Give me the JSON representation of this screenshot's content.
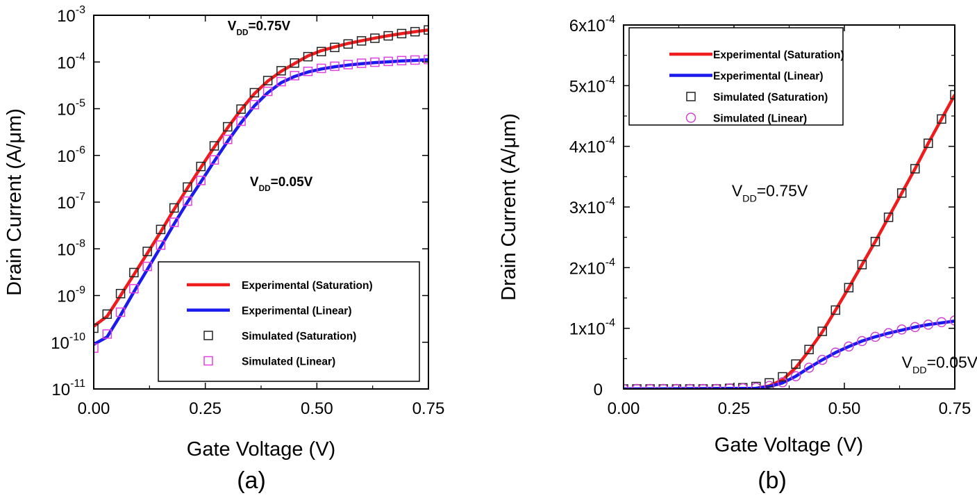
{
  "chart_data": [
    {
      "panel": "a",
      "type": "line",
      "yscale": "log",
      "xlabel": "Gate Voltage (V)",
      "ylabel": "Drain Current (A/μm)",
      "caption": "(a)",
      "xlim": [
        0,
        0.75
      ],
      "ylim": [
        1e-11,
        0.001
      ],
      "xticks": [
        0,
        0.25,
        0.5,
        0.75
      ],
      "xtick_labels": [
        "0.00",
        "0.25",
        "0.50",
        "0.75"
      ],
      "yticks": [
        1e-11,
        1e-10,
        1e-09,
        1e-08,
        1e-07,
        1e-06,
        1e-05,
        0.0001,
        0.001
      ],
      "ytick_base": "10",
      "ytick_exponents": [
        "-11",
        "-10",
        "-9",
        "-8",
        "-7",
        "-6",
        "-5",
        "-4",
        "-3"
      ],
      "legend_position": "bottom-right",
      "legend": [
        {
          "label": "Experimental (Saturation)",
          "kind": "line",
          "color": "#ee1c1c"
        },
        {
          "label": "Experimental (Linear)",
          "kind": "line",
          "color": "#1a1aee"
        },
        {
          "label": "Simulated (Saturation)",
          "kind": "square",
          "color": "#222222"
        },
        {
          "label": "Simulated (Linear)",
          "kind": "square",
          "color": "#e040e0"
        }
      ],
      "annotations": [
        {
          "text": "V",
          "sub": "DD",
          "rest": "=0.75V",
          "at_x": 0.3,
          "at_y": 0.00048
        },
        {
          "text": "V",
          "sub": "DD",
          "rest": "=0.05V",
          "at_x": 0.35,
          "at_y": 2.2e-07
        }
      ],
      "series": [
        {
          "name": "Experimental (Saturation)",
          "style": "line",
          "color": "#ee1c1c",
          "x": [
            0.0,
            0.03,
            0.06,
            0.09,
            0.12,
            0.15,
            0.18,
            0.21,
            0.24,
            0.27,
            0.3,
            0.33,
            0.36,
            0.39,
            0.42,
            0.45,
            0.48,
            0.51,
            0.54,
            0.57,
            0.6,
            0.63,
            0.66,
            0.69,
            0.72,
            0.75
          ],
          "y": [
            2.2e-10,
            3.6e-10,
            1e-09,
            2.8e-09,
            8e-09,
            2.3e-08,
            7e-08,
            2e-07,
            5.5e-07,
            1.5e-06,
            3.9e-06,
            9.5e-06,
            2.1e-05,
            3.9e-05,
            6.3e-05,
            9.3e-05,
            0.000135,
            0.000175,
            0.00021,
            0.00025,
            0.000285,
            0.000325,
            0.000365,
            0.000405,
            0.000445,
            0.000485
          ]
        },
        {
          "name": "Experimental (Linear)",
          "style": "line",
          "color": "#1a1aee",
          "x": [
            0.0,
            0.03,
            0.06,
            0.09,
            0.12,
            0.15,
            0.18,
            0.21,
            0.24,
            0.27,
            0.3,
            0.33,
            0.36,
            0.39,
            0.42,
            0.45,
            0.48,
            0.51,
            0.54,
            0.57,
            0.6,
            0.63,
            0.66,
            0.69,
            0.72,
            0.75
          ],
          "y": [
            9e-11,
            1.3e-10,
            3.8e-10,
            1.2e-09,
            3.6e-09,
            1.1e-08,
            3.4e-08,
            1e-07,
            2.7e-07,
            7.5e-07,
            2e-06,
            5e-06,
            1.15e-05,
            2.2e-05,
            3.6e-05,
            4.9e-05,
            6.1e-05,
            7.1e-05,
            7.9e-05,
            8.6e-05,
            9.2e-05,
            9.7e-05,
            0.000101,
            0.000105,
            0.000108,
            0.000112
          ]
        },
        {
          "name": "Simulated (Saturation)",
          "style": "square",
          "color": "#222222",
          "x": [
            0.0,
            0.03,
            0.06,
            0.09,
            0.12,
            0.15,
            0.18,
            0.21,
            0.24,
            0.27,
            0.3,
            0.33,
            0.36,
            0.39,
            0.42,
            0.45,
            0.48,
            0.51,
            0.54,
            0.57,
            0.6,
            0.63,
            0.66,
            0.69,
            0.72,
            0.75
          ],
          "y": [
            2e-10,
            4e-10,
            1.1e-09,
            3.1e-09,
            8.8e-09,
            2.6e-08,
            7.5e-08,
            2.1e-07,
            5.8e-07,
            1.6e-06,
            4.1e-06,
            9.8e-06,
            2.2e-05,
            4e-05,
            6.5e-05,
            9.5e-05,
            0.00013,
            0.000167,
            0.000205,
            0.000243,
            0.000283,
            0.000323,
            0.000363,
            0.000405,
            0.000445,
            0.000485
          ]
        },
        {
          "name": "Simulated (Linear)",
          "style": "square",
          "color": "#e040e0",
          "x": [
            0.0,
            0.03,
            0.06,
            0.09,
            0.12,
            0.15,
            0.18,
            0.21,
            0.24,
            0.27,
            0.3,
            0.33,
            0.36,
            0.39,
            0.42,
            0.45,
            0.48,
            0.51,
            0.54,
            0.57,
            0.6,
            0.63,
            0.66,
            0.69,
            0.72,
            0.75
          ],
          "y": [
            7.5e-11,
            1.5e-10,
            4.4e-10,
            1.4e-09,
            4.2e-09,
            1.2e-08,
            3.7e-08,
            1.05e-07,
            2.9e-07,
            8e-07,
            2.2e-06,
            5.4e-06,
            1.22e-05,
            2.35e-05,
            3.8e-05,
            5.1e-05,
            6.3e-05,
            7.3e-05,
            8.1e-05,
            8.8e-05,
            9.4e-05,
            9.9e-05,
            0.000103,
            0.000107,
            0.00011,
            0.000113
          ]
        }
      ]
    },
    {
      "panel": "b",
      "type": "line",
      "yscale": "linear",
      "xlabel": "Gate Voltage (V)",
      "ylabel": "Drain Current (A/μm)",
      "caption": "(b)",
      "xlim": [
        0,
        0.75
      ],
      "ylim": [
        0,
        0.0006
      ],
      "xticks": [
        0,
        0.25,
        0.5,
        0.75
      ],
      "xtick_labels": [
        "0.00",
        "0.25",
        "0.50",
        "0.75"
      ],
      "yticks": [
        0,
        0.0001,
        0.0002,
        0.0003,
        0.0004,
        0.0005,
        0.0006
      ],
      "ytick_mantissas": [
        "0",
        "1x10",
        "2x10",
        "3x10",
        "4x10",
        "5x10",
        "6x10"
      ],
      "ytick_exponents": [
        "",
        "-4",
        "-4",
        "-4",
        "-4",
        "-4",
        "-4"
      ],
      "legend_position": "top-left",
      "legend": [
        {
          "label": "Experimental (Saturation)",
          "kind": "line",
          "color": "#ee1c1c"
        },
        {
          "label": "Experimental (Linear)",
          "kind": "line",
          "color": "#1a1aee"
        },
        {
          "label": "Simulated (Saturation)",
          "kind": "square",
          "color": "#222222"
        },
        {
          "label": "Simulated (Linear)",
          "kind": "circle",
          "color": "#d040d0"
        }
      ],
      "annotations": [
        {
          "text": "V",
          "sub": "DD",
          "rest": "=0.75V",
          "at_x": 0.245,
          "at_y": 0.000318
        },
        {
          "text": "V",
          "sub": "DD",
          "rest": "=0.05V",
          "at_x": 0.63,
          "at_y": 3.5e-05
        }
      ],
      "series": [
        {
          "name": "Experimental (Saturation)",
          "style": "line",
          "color": "#ee1c1c",
          "x": [
            0.0,
            0.3,
            0.33,
            0.36,
            0.39,
            0.42,
            0.45,
            0.48,
            0.51,
            0.54,
            0.57,
            0.6,
            0.63,
            0.66,
            0.69,
            0.72,
            0.75
          ],
          "y": [
            0.0,
            1e-06,
            5e-06,
            1.5e-05,
            3.5e-05,
            6.3e-05,
            9.4e-05,
            0.00013,
            0.000167,
            0.000205,
            0.000243,
            0.000283,
            0.000323,
            0.000363,
            0.000405,
            0.000445,
            0.000485
          ]
        },
        {
          "name": "Experimental (Linear)",
          "style": "line",
          "color": "#1a1aee",
          "x": [
            0.0,
            0.3,
            0.33,
            0.36,
            0.39,
            0.42,
            0.45,
            0.48,
            0.51,
            0.54,
            0.57,
            0.6,
            0.63,
            0.66,
            0.69,
            0.72,
            0.75
          ],
          "y": [
            0.0,
            1e-06,
            4e-06,
            1e-05,
            2.1e-05,
            3.5e-05,
            4.8e-05,
            6e-05,
            7e-05,
            7.9e-05,
            8.6e-05,
            9.2e-05,
            9.7e-05,
            0.000102,
            0.000106,
            0.000109,
            0.000112
          ]
        },
        {
          "name": "Simulated (Saturation)",
          "style": "square",
          "color": "#222222",
          "x": [
            0.0,
            0.03,
            0.06,
            0.09,
            0.12,
            0.15,
            0.18,
            0.21,
            0.24,
            0.27,
            0.3,
            0.33,
            0.36,
            0.39,
            0.42,
            0.45,
            0.48,
            0.51,
            0.54,
            0.57,
            0.6,
            0.63,
            0.66,
            0.69,
            0.72,
            0.75
          ],
          "y": [
            0,
            0,
            0,
            0,
            0,
            0,
            0,
            0,
            1e-06,
            2e-06,
            4e-06,
            1e-05,
            2e-05,
            4.1e-05,
            6.5e-05,
            9.5e-05,
            0.00013,
            0.000167,
            0.000205,
            0.000243,
            0.000283,
            0.000323,
            0.000363,
            0.000405,
            0.000445,
            0.000485
          ]
        },
        {
          "name": "Simulated (Linear)",
          "style": "circle",
          "color": "#d040d0",
          "x": [
            0.0,
            0.03,
            0.06,
            0.09,
            0.12,
            0.15,
            0.18,
            0.21,
            0.24,
            0.27,
            0.3,
            0.33,
            0.36,
            0.39,
            0.42,
            0.45,
            0.48,
            0.51,
            0.54,
            0.57,
            0.6,
            0.63,
            0.66,
            0.69,
            0.72,
            0.75
          ],
          "y": [
            0,
            0,
            0,
            0,
            0,
            0,
            0,
            0,
            1e-06,
            1e-06,
            2e-06,
            5e-06,
            1.1e-05,
            2.1e-05,
            3.5e-05,
            4.8e-05,
            6e-05,
            7e-05,
            7.9e-05,
            8.6e-05,
            9.2e-05,
            9.8e-05,
            0.000102,
            0.000106,
            0.00011,
            0.000113
          ]
        }
      ]
    }
  ]
}
